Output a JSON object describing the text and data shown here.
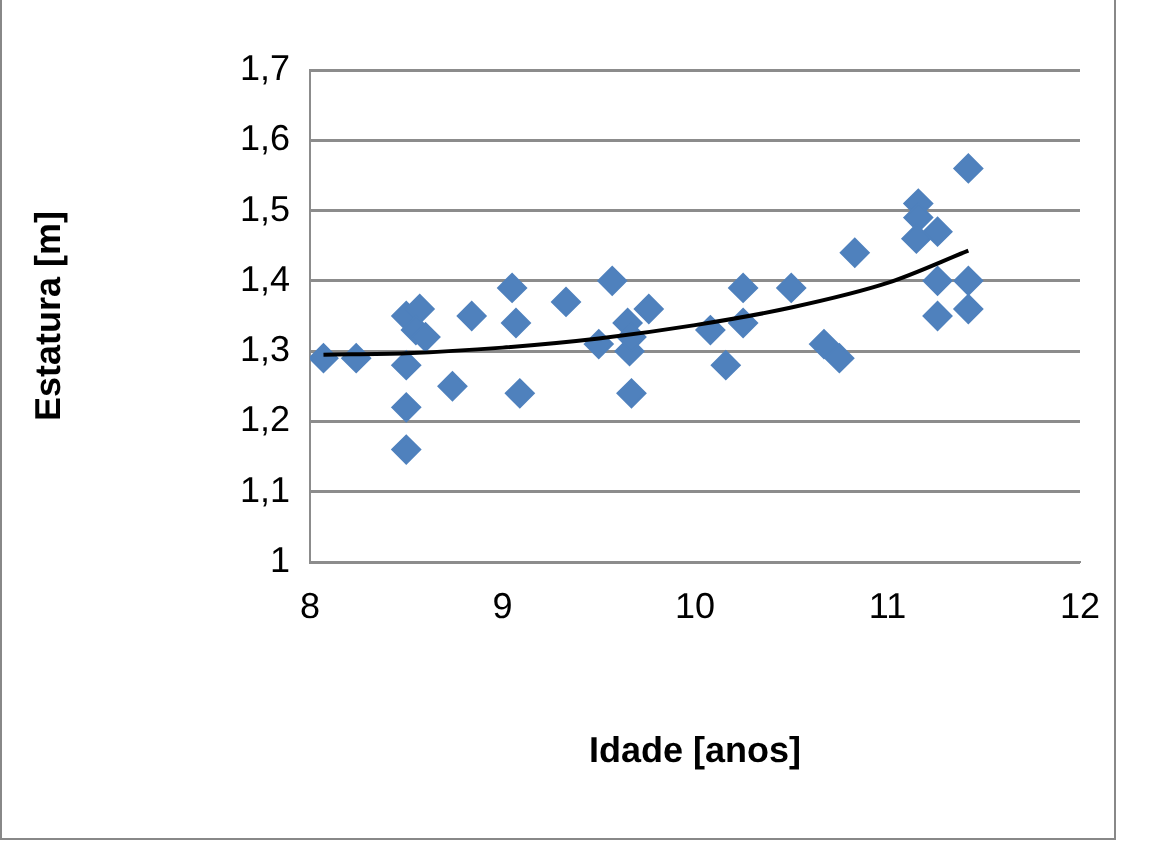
{
  "chart_data": {
    "type": "scatter",
    "xlabel": "Idade [anos]",
    "ylabel": "Estatura [m]",
    "xlim": [
      8,
      12
    ],
    "xticks": [
      8,
      9,
      10,
      11,
      12
    ],
    "ylim": [
      1,
      1.7
    ],
    "yticks": [
      1,
      {
        "value": 1.1,
        "label": "1,1"
      },
      {
        "value": 1.2,
        "label": "1,2"
      },
      {
        "value": 1.3,
        "label": "1,3"
      },
      {
        "value": 1.4,
        "label": "1,4"
      },
      {
        "value": 1.5,
        "label": "1,5"
      },
      {
        "value": 1.6,
        "label": "1,6"
      },
      {
        "value": 1.7,
        "label": "1,7"
      }
    ],
    "grid": "y",
    "legend": false,
    "marker": "diamond",
    "series": [
      {
        "color": "#4f81bd",
        "x": [
          8.07,
          8.24,
          8.5,
          8.57,
          8.55,
          8.6,
          8.5,
          8.5,
          8.5,
          8.74,
          8.84,
          9.05,
          9.07,
          9.09,
          9.33,
          9.5,
          9.57,
          9.65,
          9.66,
          9.67,
          9.67,
          9.76,
          10.08,
          10.16,
          10.25,
          10.25,
          10.5,
          10.67,
          10.75,
          10.83,
          11.16,
          11.16,
          11.15,
          11.26,
          11.26,
          11.26,
          11.42,
          11.42,
          11.42
        ],
        "values": [
          1.29,
          1.29,
          1.35,
          1.36,
          1.33,
          1.32,
          1.28,
          1.22,
          1.16,
          1.25,
          1.35,
          1.39,
          1.34,
          1.24,
          1.37,
          1.31,
          1.4,
          1.34,
          1.3,
          1.32,
          1.24,
          1.36,
          1.33,
          1.28,
          1.39,
          1.34,
          1.39,
          1.31,
          1.29,
          1.44,
          1.51,
          1.49,
          1.46,
          1.47,
          1.4,
          1.35,
          1.56,
          1.4,
          1.36
        ]
      },
      {
        "type": "line",
        "color": "#000000",
        "marker": "none",
        "x": [
          8.07,
          8.5,
          9,
          9.5,
          10,
          10.5,
          11,
          11.42
        ],
        "values": [
          1.295,
          1.297,
          1.305,
          1.318,
          1.337,
          1.362,
          1.397,
          1.443
        ]
      }
    ]
  }
}
